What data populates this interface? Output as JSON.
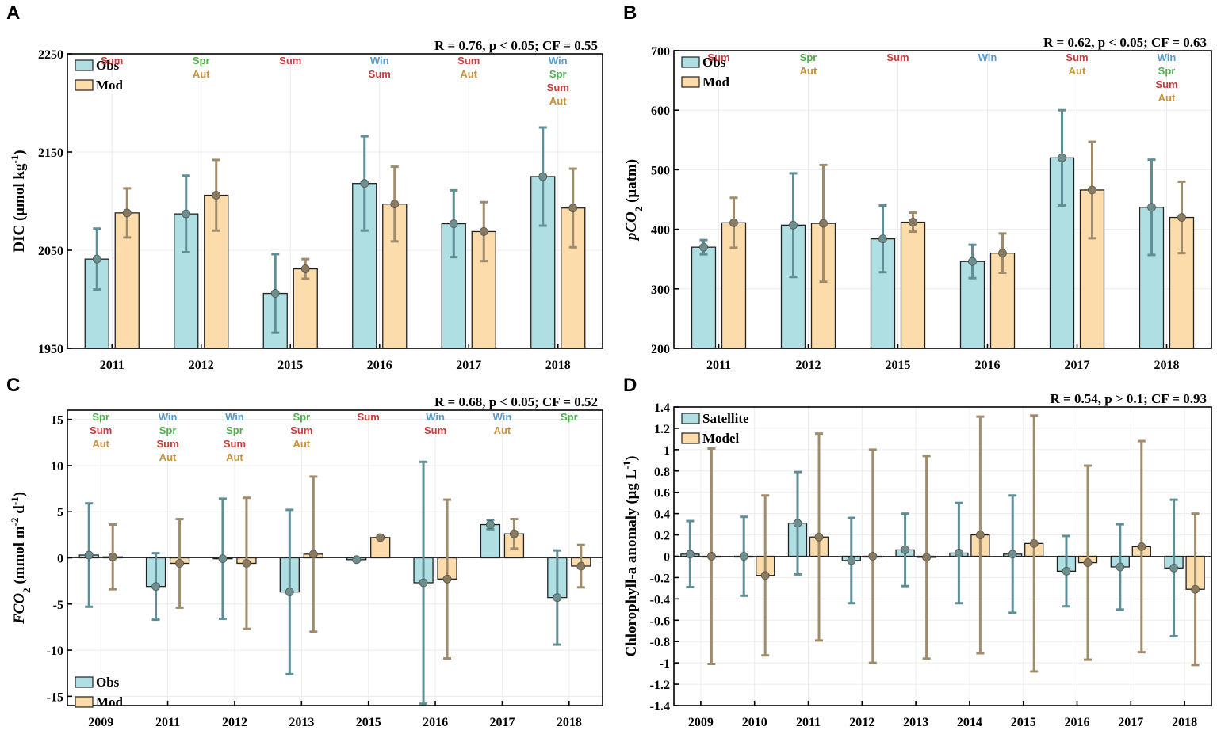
{
  "colors": {
    "obs_fill": "#b0dfe3",
    "mod_fill": "#fcdcaa",
    "obs_err": "#5f8f96",
    "mod_err": "#a08c6a",
    "obs_dot": "#6c8f8f",
    "mod_dot": "#8c7a5e",
    "Win": "#5b9bc9",
    "Spr": "#4daf4a",
    "Sum": "#c83c3c",
    "Aut": "#c9913a",
    "grid": "#ececec"
  },
  "chart_data": [
    {
      "panel": "A",
      "type": "bar",
      "stat": "R = 0.76, p < 0.05; CF = 0.55",
      "ylabel": "DIC (μmol kg",
      "ylabel_sup": "-1",
      "ylabel_tail": ")",
      "ylim": [
        1950,
        2250
      ],
      "yticks": [
        1950,
        2050,
        2150,
        2250
      ],
      "yticks_fmt": [
        "1950",
        "2050",
        "2150",
        "2250"
      ],
      "baseline": 1950,
      "legend": [
        "Obs",
        "Mod"
      ],
      "legend_pos": "top-left",
      "categories": [
        "2011",
        "2012",
        "2015",
        "2016",
        "2017",
        "2018"
      ],
      "series": [
        {
          "name": "Obs",
          "values": [
            2041,
            2087,
            2006,
            2118,
            2077,
            2125
          ],
          "err": [
            31,
            39,
            40,
            48,
            34,
            50
          ]
        },
        {
          "name": "Mod",
          "values": [
            2088,
            2106,
            2031,
            2097,
            2069,
            2093
          ],
          "err": [
            25,
            36,
            10,
            38,
            30,
            40
          ]
        }
      ],
      "seasons": [
        [
          "Sum"
        ],
        [
          "Spr",
          "Aut"
        ],
        [
          "Sum"
        ],
        [
          "Win",
          "Sum"
        ],
        [
          "Sum",
          "Aut"
        ],
        [
          "Win",
          "Spr",
          "Sum",
          "Aut"
        ]
      ]
    },
    {
      "panel": "B",
      "type": "bar",
      "stat": "R = 0.62, p < 0.05; CF = 0.63",
      "ylabel": "pCO",
      "ylabel_sub": "2",
      "ylabel_tail": " (μatm)",
      "ylim": [
        200,
        700
      ],
      "yticks": [
        200,
        300,
        400,
        500,
        600,
        700
      ],
      "yticks_fmt": [
        "200",
        "300",
        "400",
        "500",
        "600",
        "700"
      ],
      "baseline": 200,
      "legend": [
        "Obs",
        "Mod"
      ],
      "legend_pos": "top-left",
      "categories": [
        "2011",
        "2012",
        "2015",
        "2016",
        "2017",
        "2018"
      ],
      "series": [
        {
          "name": "Obs",
          "values": [
            370,
            407,
            384,
            346,
            520,
            437
          ],
          "err": [
            12,
            87,
            56,
            28,
            80,
            80
          ]
        },
        {
          "name": "Mod",
          "values": [
            411,
            410,
            412,
            360,
            466,
            420
          ],
          "err": [
            42,
            98,
            16,
            33,
            81,
            60
          ]
        }
      ],
      "seasons": [
        [
          "Sum"
        ],
        [
          "Spr",
          "Aut"
        ],
        [
          "Sum"
        ],
        [
          "Win"
        ],
        [
          "Sum",
          "Aut"
        ],
        [
          "Win",
          "Spr",
          "Sum",
          "Aut"
        ]
      ]
    },
    {
      "panel": "C",
      "type": "bar",
      "stat": "R = 0.68, p < 0.05; CF = 0.52",
      "ylabel": "FCO",
      "ylabel_sub": "2",
      "ylabel_tail": " (mmol m",
      "ylabel_sup": "-2",
      "ylabel_tail2": " d",
      "ylabel_sup2": "-1",
      "ylabel_tail3": ")",
      "ylim": [
        -16,
        16
      ],
      "yticks": [
        -15,
        -10,
        -5,
        0,
        5,
        10,
        15
      ],
      "yticks_fmt": [
        "-15",
        "-10",
        "-5",
        "0",
        "5",
        "10",
        "15"
      ],
      "baseline": 0,
      "legend": [
        "Obs",
        "Mod"
      ],
      "legend_pos": "bottom-left",
      "categories": [
        "2009",
        "2011",
        "2012",
        "2013",
        "2015",
        "2016",
        "2017",
        "2018"
      ],
      "series": [
        {
          "name": "Obs",
          "values": [
            0.3,
            -3.1,
            -0.1,
            -3.7,
            -0.2,
            -2.7,
            3.6,
            -4.3
          ],
          "err": [
            5.6,
            3.6,
            6.5,
            8.9,
            0.1,
            13.1,
            0.5,
            5.1
          ]
        },
        {
          "name": "Mod",
          "values": [
            0.1,
            -0.6,
            -0.6,
            0.4,
            2.2,
            -2.3,
            2.6,
            -0.9
          ],
          "err": [
            3.5,
            4.8,
            7.1,
            8.4,
            0.1,
            8.6,
            1.6,
            2.3
          ]
        }
      ],
      "seasons": [
        [
          "Spr",
          "Sum",
          "Aut"
        ],
        [
          "Win",
          "Spr",
          "Sum",
          "Aut"
        ],
        [
          "Win",
          "Spr",
          "Sum",
          "Aut"
        ],
        [
          "Spr",
          "Sum",
          "Aut"
        ],
        [
          "Sum"
        ],
        [
          "Win",
          "Sum"
        ],
        [
          "Win",
          "Aut"
        ],
        [
          "Spr"
        ]
      ]
    },
    {
      "panel": "D",
      "type": "bar",
      "stat": "R = 0.54, p > 0.1; CF = 0.93",
      "ylabel": "Chlorophyll-a anomaly (μg L",
      "ylabel_sup": "-1",
      "ylabel_tail": ")",
      "ylim": [
        -1.4,
        1.4
      ],
      "yticks": [
        -1.4,
        -1.2,
        -1,
        -0.8,
        -0.6,
        -0.4,
        -0.2,
        0,
        0.2,
        0.4,
        0.6,
        0.8,
        1,
        1.2,
        1.4
      ],
      "yticks_fmt": [
        "-1.4",
        "-1.2",
        "-1",
        "-0.8",
        "-0.6",
        "-0.4",
        "-0.2",
        "0",
        "0.2",
        "0.4",
        "0.6",
        "0.8",
        "1",
        "1.2",
        "1.4"
      ],
      "baseline": 0,
      "legend": [
        "Satellite",
        "Model"
      ],
      "legend_pos": "top-left",
      "categories": [
        "2009",
        "2010",
        "2011",
        "2012",
        "2013",
        "2014",
        "2015",
        "2016",
        "2017",
        "2018"
      ],
      "series": [
        {
          "name": "Satellite",
          "values": [
            0.02,
            0.0,
            0.31,
            -0.04,
            0.06,
            0.03,
            0.02,
            -0.14,
            -0.1,
            -0.11
          ],
          "err": [
            0.31,
            0.37,
            0.48,
            0.4,
            0.34,
            0.47,
            0.55,
            0.33,
            0.4,
            0.64
          ]
        },
        {
          "name": "Model",
          "values": [
            0.0,
            -0.18,
            0.18,
            0.0,
            -0.01,
            0.2,
            0.12,
            -0.06,
            0.09,
            -0.31
          ],
          "err": [
            1.01,
            0.75,
            0.97,
            1.0,
            0.95,
            1.11,
            1.2,
            0.91,
            0.99,
            0.71
          ]
        }
      ],
      "seasons": []
    }
  ]
}
